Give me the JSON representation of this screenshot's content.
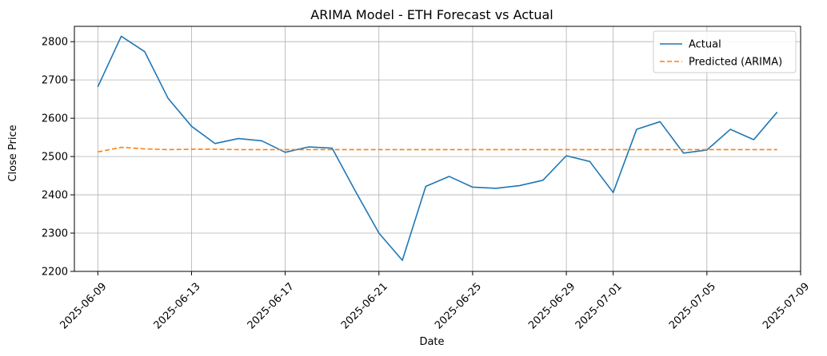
{
  "chart_data": {
    "type": "line",
    "title": "ARIMA Model - ETH Forecast vs Actual",
    "xlabel": "Date",
    "ylabel": "Close Price",
    "xlim": [
      "2025-06-08",
      "2025-07-09"
    ],
    "ylim": [
      2200,
      2840
    ],
    "grid": true,
    "legend_position": "top-right",
    "x_ticks": [
      "2025-06-09",
      "2025-06-13",
      "2025-06-17",
      "2025-06-21",
      "2025-06-25",
      "2025-06-29",
      "2025-07-01",
      "2025-07-05",
      "2025-07-09"
    ],
    "y_ticks": [
      2200,
      2300,
      2400,
      2500,
      2600,
      2700,
      2800
    ],
    "x": [
      "2025-06-09",
      "2025-06-10",
      "2025-06-11",
      "2025-06-12",
      "2025-06-13",
      "2025-06-14",
      "2025-06-15",
      "2025-06-16",
      "2025-06-17",
      "2025-06-18",
      "2025-06-19",
      "2025-06-20",
      "2025-06-21",
      "2025-06-22",
      "2025-06-23",
      "2025-06-24",
      "2025-06-25",
      "2025-06-26",
      "2025-06-27",
      "2025-06-28",
      "2025-06-29",
      "2025-06-30",
      "2025-07-01",
      "2025-07-02",
      "2025-07-03",
      "2025-07-04",
      "2025-07-05",
      "2025-07-06",
      "2025-07-07",
      "2025-07-08"
    ],
    "series": [
      {
        "name": "Actual",
        "color": "#1f77b4",
        "style": "solid",
        "values": [
          2682,
          2814,
          2774,
          2652,
          2579,
          2534,
          2547,
          2541,
          2511,
          2525,
          2522,
          2409,
          2300,
          2229,
          2422,
          2448,
          2420,
          2417,
          2424,
          2438,
          2502,
          2487,
          2406,
          2571,
          2591,
          2509,
          2517,
          2571,
          2544,
          2616
        ]
      },
      {
        "name": "Predicted (ARIMA)",
        "color": "#ff7f0e",
        "style": "dashed",
        "values": [
          2512,
          2524,
          2520,
          2518,
          2519,
          2519,
          2518,
          2518,
          2518,
          2518,
          2518,
          2518,
          2518,
          2518,
          2518,
          2518,
          2518,
          2518,
          2518,
          2518,
          2518,
          2518,
          2518,
          2518,
          2518,
          2518,
          2518,
          2518,
          2518,
          2518
        ]
      }
    ]
  }
}
